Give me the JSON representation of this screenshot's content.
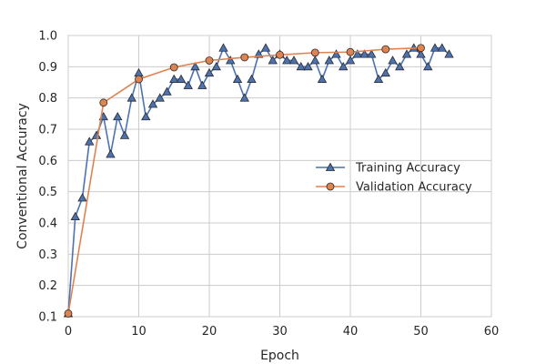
{
  "chart_data": {
    "type": "line",
    "title": "",
    "xlabel": "Epoch",
    "ylabel": "Conventional Accuracy",
    "xlim": [
      0,
      60
    ],
    "ylim": [
      0.1,
      1.0
    ],
    "x_ticks": [
      "0",
      "10",
      "20",
      "30",
      "40",
      "50",
      "60"
    ],
    "y_ticks": [
      "0.1",
      "0.2",
      "0.3",
      "0.4",
      "0.5",
      "0.6",
      "0.7",
      "0.8",
      "0.9",
      "1.0"
    ],
    "grid": true,
    "legend_position": "center-right",
    "series": [
      {
        "name": "Training Accuracy",
        "color": "#4c72b0",
        "marker": "triangle",
        "x": [
          0,
          1,
          2,
          3,
          4,
          5,
          6,
          7,
          8,
          9,
          10,
          11,
          12,
          13,
          14,
          15,
          16,
          17,
          18,
          19,
          20,
          21,
          22,
          23,
          24,
          25,
          26,
          27,
          28,
          29,
          30,
          31,
          32,
          33,
          34,
          35,
          36,
          37,
          38,
          39,
          40,
          41,
          42,
          43,
          44,
          45,
          46,
          47,
          48,
          49,
          50,
          51,
          52,
          53,
          54
        ],
        "y": [
          0.11,
          0.42,
          0.48,
          0.66,
          0.68,
          0.74,
          0.62,
          0.74,
          0.68,
          0.8,
          0.88,
          0.74,
          0.78,
          0.8,
          0.82,
          0.86,
          0.86,
          0.84,
          0.9,
          0.84,
          0.88,
          0.9,
          0.96,
          0.92,
          0.86,
          0.8,
          0.86,
          0.94,
          0.96,
          0.92,
          0.94,
          0.92,
          0.92,
          0.9,
          0.9,
          0.92,
          0.86,
          0.92,
          0.94,
          0.9,
          0.92,
          0.94,
          0.94,
          0.94,
          0.86,
          0.88,
          0.92,
          0.9,
          0.94,
          0.96,
          0.94,
          0.9,
          0.96,
          0.96,
          0.94
        ]
      },
      {
        "name": "Validation Accuracy",
        "color": "#dd8452",
        "marker": "circle",
        "x": [
          0,
          5,
          10,
          15,
          20,
          25,
          30,
          35,
          40,
          45,
          50
        ],
        "y": [
          0.11,
          0.785,
          0.86,
          0.898,
          0.92,
          0.93,
          0.938,
          0.945,
          0.947,
          0.956,
          0.96
        ]
      }
    ]
  }
}
